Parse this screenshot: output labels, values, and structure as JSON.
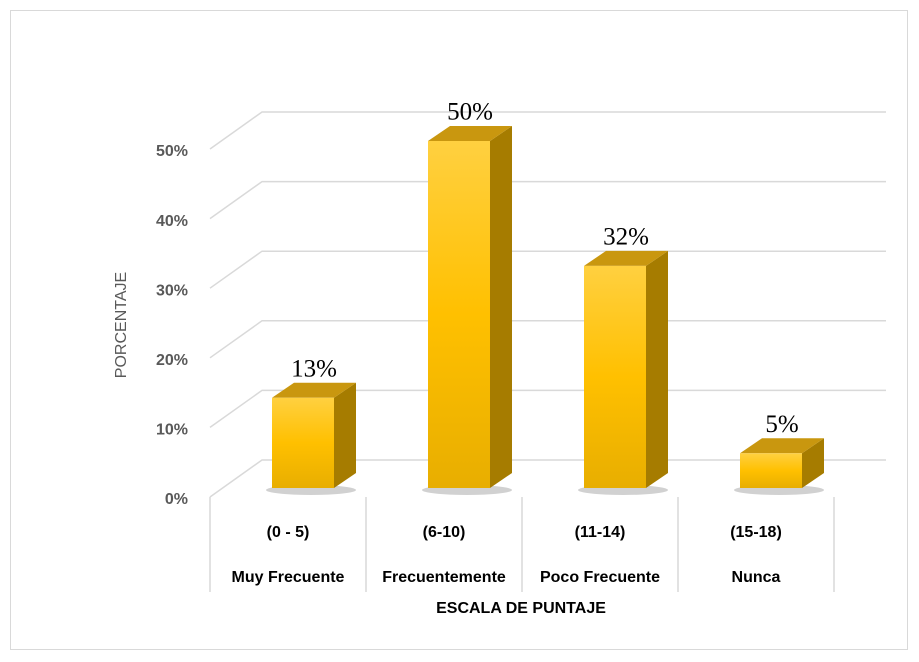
{
  "chart_data": {
    "type": "bar3d",
    "y_axis_label": "PORCENTAJE",
    "x_axis_label": "ESCALA DE PUNTAJE",
    "categories": [
      "(0 - 5)",
      "(6-10)",
      "(11-14)",
      "(15-18)"
    ],
    "category_labels": [
      "Muy Frecuente",
      "Frecuentemente",
      "Poco Frecuente",
      "Nunca"
    ],
    "values": [
      13,
      50,
      32,
      5
    ],
    "value_labels": [
      "13%",
      "50%",
      "32%",
      "5%"
    ],
    "color": "#FFC000",
    "ylim": [
      0,
      50
    ],
    "yticks": [
      {
        "value": 0,
        "label": "0%"
      },
      {
        "value": 10,
        "label": "10%"
      },
      {
        "value": 20,
        "label": "20%"
      },
      {
        "value": 30,
        "label": "30%"
      },
      {
        "value": 40,
        "label": "40%"
      },
      {
        "value": 50,
        "label": "50%"
      }
    ],
    "grid": true
  }
}
